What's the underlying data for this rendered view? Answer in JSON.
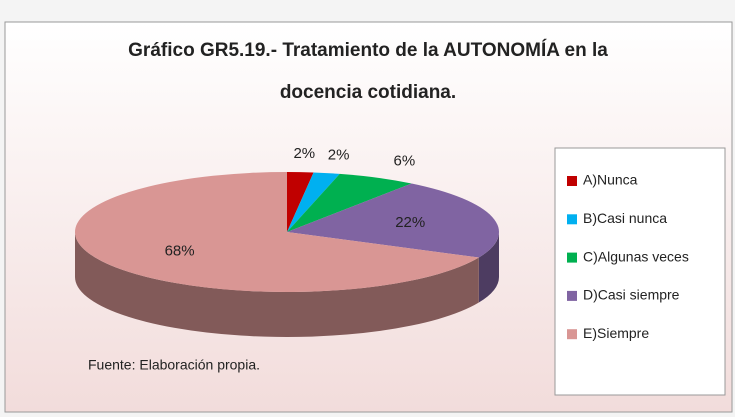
{
  "chart_data": {
    "type": "pie",
    "title": [
      "Gráfico GR5.19.-  Tratamiento de la AUTONOMÍA  en la",
      "docencia cotidiana."
    ],
    "categories": [
      "A)Nunca",
      "B)Casi nunca",
      "C)Algunas veces",
      "D)Casi siempre",
      "E)Siempre"
    ],
    "values": [
      2,
      2,
      6,
      22,
      68
    ],
    "value_labels": [
      "2%",
      "2%",
      "6%",
      "22%",
      "68%"
    ],
    "colors": [
      "#c00000",
      "#00b0f0",
      "#00b050",
      "#8064a2",
      "#d99694"
    ],
    "legend": "right",
    "annotation": "Fuente: Elaboración propia."
  }
}
